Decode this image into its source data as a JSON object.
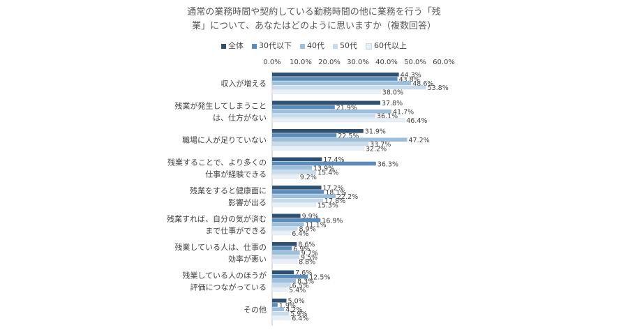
{
  "title_line1": "通常の業務時間や契約している勤務時間の他に業務を行う「残",
  "title_line2": "業」について、あなたはどのように思いますか（複数回答）",
  "chart_data": {
    "type": "bar",
    "orientation": "horizontal",
    "xlim": [
      0,
      60
    ],
    "ticks": [
      "0.0%",
      "10.0%",
      "20.0%",
      "30.0%",
      "40.0%",
      "50.0%",
      "60.0%"
    ],
    "tick_values": [
      0,
      10,
      20,
      30,
      40,
      50,
      60
    ],
    "grid": false,
    "legend_position": "top",
    "categories": [
      [
        "収入が増える"
      ],
      [
        "残業が発生してしまうこと",
        "は、仕方がない"
      ],
      [
        "職場に人が足りていない"
      ],
      [
        "残業することで、より多くの",
        "仕事が経験できる"
      ],
      [
        "残業をすると健康面に",
        "影響が出る"
      ],
      [
        "残業すれば、自分の気が済む",
        "まで仕事ができる"
      ],
      [
        "残業している人は、仕事の",
        "効率が悪い"
      ],
      [
        "残業している人のほうが",
        "評価につながっている"
      ],
      [
        "その他"
      ]
    ],
    "series": [
      {
        "name": "全体",
        "color": "#2e5171",
        "values": [
          44.3,
          37.8,
          31.9,
          17.4,
          17.2,
          9.9,
          8.6,
          7.6,
          5.0
        ]
      },
      {
        "name": "30代以下",
        "color": "#5b8db8",
        "values": [
          43.8,
          21.9,
          22.5,
          36.3,
          18.1,
          16.9,
          6.9,
          12.5,
          1.9
        ]
      },
      {
        "name": "40代",
        "color": "#9dbfdc",
        "values": [
          48.6,
          41.7,
          47.2,
          13.9,
          22.2,
          11.1,
          9.7,
          8.3,
          4.2
        ]
      },
      {
        "name": "50代",
        "color": "#c7dbeb",
        "values": [
          53.8,
          36.1,
          33.7,
          15.4,
          17.8,
          8.9,
          9.5,
          6.5,
          5.9
        ]
      },
      {
        "name": "60代以上",
        "color": "#e8eff6",
        "values": [
          38.0,
          46.4,
          32.2,
          9.2,
          15.3,
          6.4,
          8.8,
          5.4,
          6.4
        ]
      }
    ]
  }
}
